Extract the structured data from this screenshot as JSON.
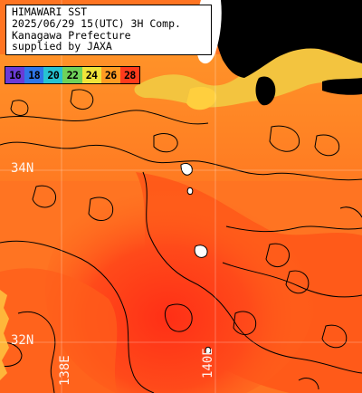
{
  "header": {
    "lines": [
      "HIMAWARI SST",
      "2025/06/29 15(UTC) 3H Comp.",
      "Kanagawa Prefecture",
      "supplied by JAXA"
    ]
  },
  "legend": {
    "entries": [
      {
        "label": "16",
        "color": "#6a3bd6"
      },
      {
        "label": "18",
        "color": "#2f76e8"
      },
      {
        "label": "20",
        "color": "#26c3d2"
      },
      {
        "label": "22",
        "color": "#6fd25a"
      },
      {
        "label": "24",
        "color": "#f0e43a"
      },
      {
        "label": "26",
        "color": "#ff9b22"
      },
      {
        "label": "28",
        "color": "#ff3b1c"
      }
    ]
  },
  "grid_labels": {
    "lat_34": "34N",
    "lat_32": "32N",
    "lon_138": "138E",
    "lon_140": "140E"
  },
  "colors": {
    "land": "#000000",
    "snow_land": "#ffffff",
    "coastal_cool": "#f6cc45",
    "sea_mid": "#ff8c26",
    "sea_warm": "#ff5a1c",
    "sea_hot": "#ff3418",
    "contour": "#000000"
  }
}
